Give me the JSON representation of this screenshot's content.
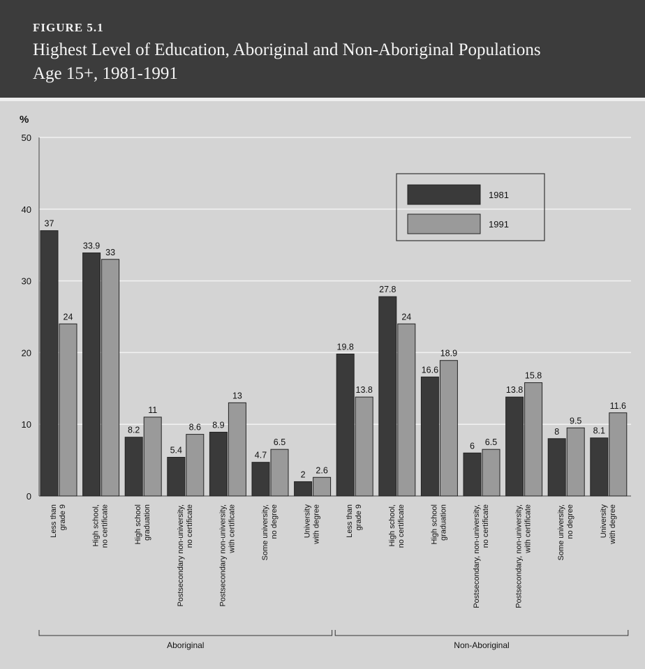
{
  "figure_label": "FIGURE 5.1",
  "title_line1": "Highest Level of Education, Aboriginal and Non-Aboriginal Populations",
  "title_line2": "Age 15+, 1981-1991",
  "colors": {
    "s1981": "#3a3a3a",
    "s1991": "#9a9a9a",
    "background": "#d4d4d4",
    "header": "#3c3c3c"
  },
  "chart_data": {
    "type": "bar",
    "ylabel": "%",
    "ylim": [
      0,
      50
    ],
    "yticks": [
      0,
      10,
      20,
      30,
      40,
      50
    ],
    "grid": true,
    "legend_position": "top-right",
    "series": [
      {
        "name": "1981",
        "values": [
          37,
          33.9,
          8.2,
          5.4,
          8.9,
          4.7,
          2,
          19.8,
          27.8,
          16.6,
          6,
          13.8,
          8,
          8.1
        ]
      },
      {
        "name": "1991",
        "values": [
          24,
          33,
          11,
          8.6,
          13,
          6.5,
          2.6,
          13.8,
          24,
          18.9,
          6.5,
          15.8,
          9.5,
          11.6
        ]
      }
    ],
    "categories": [
      [
        "Less than",
        "grade 9"
      ],
      [
        "High school,",
        "no certificate"
      ],
      [
        "High school",
        "graduation"
      ],
      [
        "Postsecondary non-university,",
        "no certificate"
      ],
      [
        "Postsecondary non-university,",
        "with certificate"
      ],
      [
        "Some university,",
        "no degree"
      ],
      [
        "University",
        "with degree"
      ],
      [
        "Less than",
        "grade 9"
      ],
      [
        "High school,",
        "no certificate"
      ],
      [
        "High school",
        "graduation"
      ],
      [
        "Postsecondary, non-university,",
        "no certificate"
      ],
      [
        "Postsecondary, non-university,",
        "with certificate"
      ],
      [
        "Some university,",
        "no degree"
      ],
      [
        "University",
        "with degree"
      ]
    ],
    "groups": [
      {
        "label": "Aboriginal",
        "start": 0,
        "end": 6
      },
      {
        "label": "Non-Aboriginal",
        "start": 7,
        "end": 13
      }
    ]
  }
}
